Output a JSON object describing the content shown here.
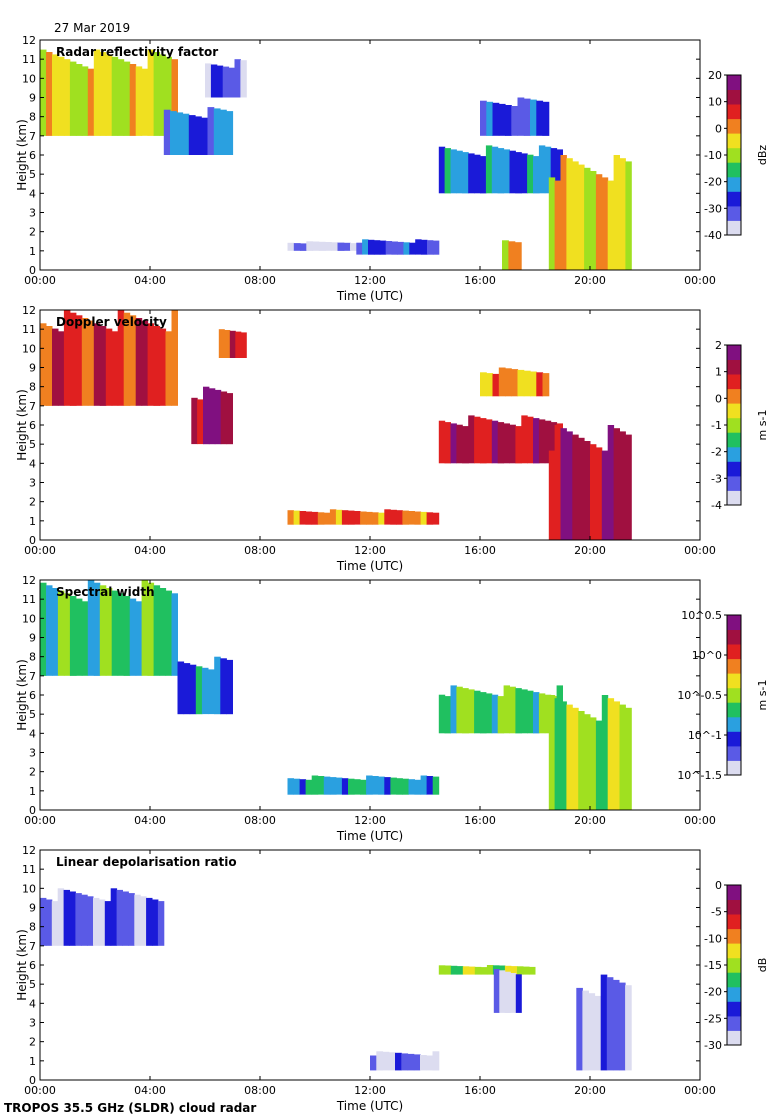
{
  "date_label": "27 Mar 2019",
  "footer_label": "TROPOS 35.5 GHz (SLDR) cloud radar",
  "colors": {
    "sequence": [
      "#dcdcf0",
      "#5a5ae6",
      "#1a1ad8",
      "#2aa0e0",
      "#20c060",
      "#a0e020",
      "#f0e020",
      "#f08020",
      "#e02020",
      "#a01040",
      "#801080"
    ]
  },
  "chart_data": [
    {
      "type": "heatmap",
      "title": "Radar reflectivity factor",
      "xlabel": "Time (UTC)",
      "ylabel": "Height (km)",
      "xlim": [
        0,
        24
      ],
      "ylim": [
        0,
        12
      ],
      "x_ticks": [
        "00:00",
        "04:00",
        "08:00",
        "12:00",
        "16:00",
        "20:00",
        "00:00"
      ],
      "y_ticks": [
        "0",
        "1",
        "2",
        "3",
        "4",
        "5",
        "6",
        "7",
        "8",
        "9",
        "10",
        "11",
        "12"
      ],
      "colorbar": {
        "label": "dBz",
        "ticks": [
          "20",
          "10",
          "0",
          "-10",
          "-20",
          "-30",
          "-40"
        ]
      },
      "regions": [
        {
          "t0": 0.0,
          "t1": 5.0,
          "h0": 7.0,
          "h1": 11.5,
          "level": 0.55
        },
        {
          "t0": 4.5,
          "t1": 7.0,
          "h0": 6.0,
          "h1": 8.5,
          "level": 0.25
        },
        {
          "t0": 6.0,
          "t1": 7.5,
          "h0": 9.0,
          "h1": 11.0,
          "level": 0.15
        },
        {
          "t0": 9.0,
          "t1": 11.5,
          "h0": 1.0,
          "h1": 1.5,
          "level": 0.05
        },
        {
          "t0": 11.5,
          "t1": 14.5,
          "h0": 0.8,
          "h1": 1.6,
          "level": 0.2
        },
        {
          "t0": 14.5,
          "t1": 19.0,
          "h0": 4.0,
          "h1": 6.5,
          "level": 0.3
        },
        {
          "t0": 16.0,
          "t1": 18.5,
          "h0": 7.0,
          "h1": 9.0,
          "level": 0.2
        },
        {
          "t0": 16.8,
          "t1": 17.5,
          "h0": 0.0,
          "h1": 1.8,
          "level": 0.6
        },
        {
          "t0": 18.5,
          "t1": 21.5,
          "h0": 0.0,
          "h1": 6.0,
          "level": 0.6
        }
      ]
    },
    {
      "type": "heatmap",
      "title": "Doppler velocity",
      "xlabel": "Time (UTC)",
      "ylabel": "Height (km)",
      "xlim": [
        0,
        24
      ],
      "ylim": [
        0,
        12
      ],
      "x_ticks": [
        "00:00",
        "04:00",
        "08:00",
        "12:00",
        "16:00",
        "20:00",
        "00:00"
      ],
      "y_ticks": [
        "0",
        "1",
        "2",
        "3",
        "4",
        "5",
        "6",
        "7",
        "8",
        "9",
        "10",
        "11",
        "12"
      ],
      "colorbar": {
        "label": "m s-1",
        "ticks": [
          "2",
          "1",
          "0",
          "-1",
          "-2",
          "-3",
          "-4"
        ]
      },
      "regions": [
        {
          "t0": 0.0,
          "t1": 5.0,
          "h0": 7.0,
          "h1": 12.0,
          "level": 0.78
        },
        {
          "t0": 5.5,
          "t1": 7.0,
          "h0": 5.0,
          "h1": 8.0,
          "level": 0.9
        },
        {
          "t0": 6.5,
          "t1": 7.5,
          "h0": 9.5,
          "h1": 11.0,
          "level": 0.75
        },
        {
          "t0": 9.0,
          "t1": 14.5,
          "h0": 0.8,
          "h1": 1.6,
          "level": 0.72
        },
        {
          "t0": 14.5,
          "t1": 19.0,
          "h0": 4.0,
          "h1": 6.5,
          "level": 0.82
        },
        {
          "t0": 16.0,
          "t1": 18.5,
          "h0": 7.5,
          "h1": 9.0,
          "level": 0.65
        },
        {
          "t0": 18.5,
          "t1": 21.5,
          "h0": 0.0,
          "h1": 6.0,
          "level": 0.85
        }
      ]
    },
    {
      "type": "heatmap",
      "title": "Spectral width",
      "xlabel": "Time (UTC)",
      "ylabel": "Height (km)",
      "xlim": [
        0,
        24
      ],
      "ylim": [
        0,
        12
      ],
      "x_ticks": [
        "00:00",
        "04:00",
        "08:00",
        "12:00",
        "16:00",
        "20:00",
        "00:00"
      ],
      "y_ticks": [
        "0",
        "1",
        "2",
        "3",
        "4",
        "5",
        "6",
        "7",
        "8",
        "9",
        "10",
        "11",
        "12"
      ],
      "colorbar": {
        "label": "m s-1",
        "ticks": [
          "10^0.5",
          "10^0",
          "10^-0.5",
          "10^-1",
          "10^-1.5"
        ]
      },
      "regions": [
        {
          "t0": 0.0,
          "t1": 5.0,
          "h0": 7.0,
          "h1": 12.0,
          "level": 0.4
        },
        {
          "t0": 5.0,
          "t1": 7.0,
          "h0": 5.0,
          "h1": 8.0,
          "level": 0.3
        },
        {
          "t0": 9.0,
          "t1": 14.5,
          "h0": 0.8,
          "h1": 1.8,
          "level": 0.35
        },
        {
          "t0": 14.5,
          "t1": 19.0,
          "h0": 4.0,
          "h1": 6.5,
          "level": 0.45
        },
        {
          "t0": 18.5,
          "t1": 21.5,
          "h0": 0.0,
          "h1": 6.0,
          "level": 0.5
        }
      ]
    },
    {
      "type": "heatmap",
      "title": "Linear depolarisation ratio",
      "xlabel": "Time (UTC)",
      "ylabel": "Height (km)",
      "xlim": [
        0,
        24
      ],
      "ylim": [
        0,
        12
      ],
      "x_ticks": [
        "00:00",
        "04:00",
        "08:00",
        "12:00",
        "16:00",
        "20:00",
        "00:00"
      ],
      "y_ticks": [
        "0",
        "1",
        "2",
        "3",
        "4",
        "5",
        "6",
        "7",
        "8",
        "9",
        "10",
        "11",
        "12"
      ],
      "colorbar": {
        "label": "dB",
        "ticks": [
          "0",
          "-5",
          "-10",
          "-15",
          "-20",
          "-25",
          "-30"
        ]
      },
      "regions": [
        {
          "t0": 0.0,
          "t1": 4.5,
          "h0": 7.0,
          "h1": 10.0,
          "level": 0.15
        },
        {
          "t0": 12.0,
          "t1": 14.5,
          "h0": 0.5,
          "h1": 1.5,
          "level": 0.12
        },
        {
          "t0": 14.5,
          "t1": 18.0,
          "h0": 5.5,
          "h1": 6.0,
          "level": 0.5
        },
        {
          "t0": 16.5,
          "t1": 17.5,
          "h0": 3.5,
          "h1": 6.0,
          "level": 0.1
        },
        {
          "t0": 19.5,
          "t1": 21.5,
          "h0": 0.5,
          "h1": 5.5,
          "level": 0.1
        }
      ]
    }
  ]
}
